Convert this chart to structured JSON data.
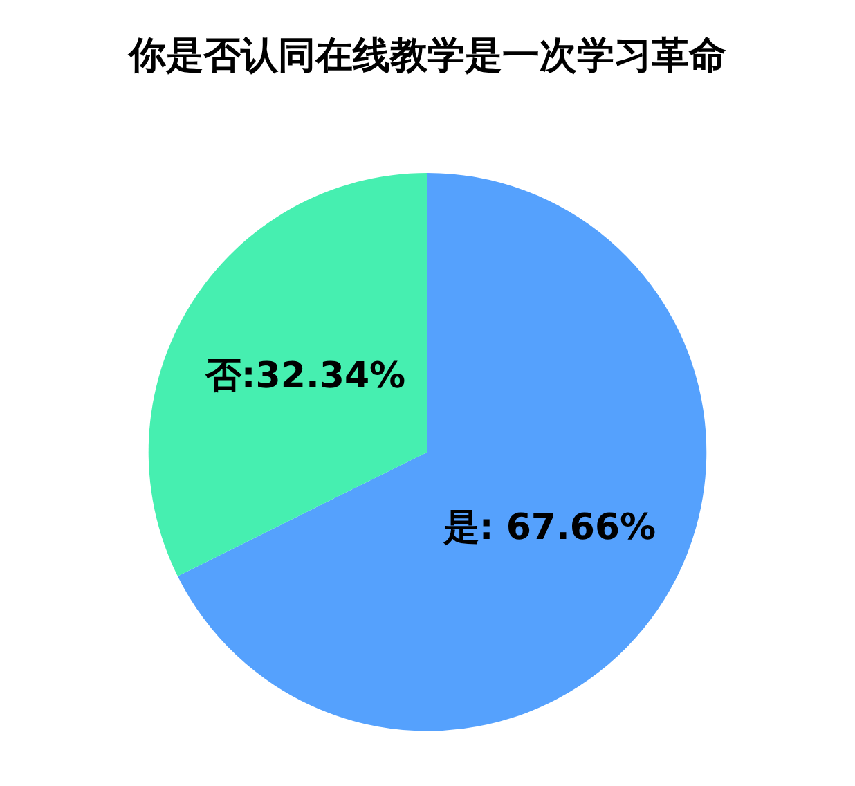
{
  "chart_data": {
    "type": "pie",
    "title": "你是否认同在线教学是一次学习革命",
    "categories": [
      "是",
      "否"
    ],
    "values": [
      67.66,
      32.34
    ],
    "colors": [
      "#55a1fd",
      "#46efb0"
    ],
    "value_labels": [
      ": 67.66%",
      ":32.34%"
    ],
    "legend": false
  }
}
